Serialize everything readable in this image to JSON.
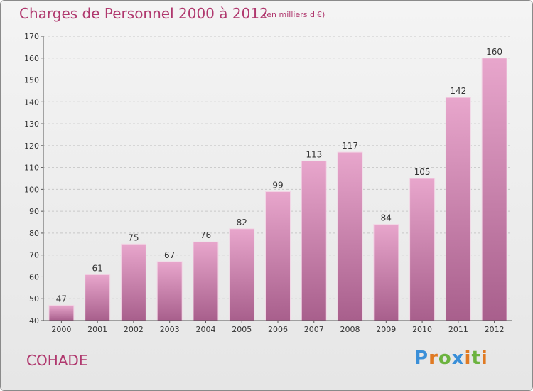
{
  "header": {
    "title": "Charges de Personnel 2000 à 2012",
    "unit": "(en milliers d'€)"
  },
  "footer": {
    "commune": "COHADE",
    "logo": [
      "P",
      "r",
      "o",
      "x",
      "i",
      "t",
      "i"
    ]
  },
  "colors": {
    "accent": "#b0386e",
    "bar_top": "#e8a6cc",
    "bar_bottom": "#a85f8c"
  },
  "chart_data": {
    "type": "bar",
    "categories": [
      "2000",
      "2001",
      "2002",
      "2003",
      "2004",
      "2005",
      "2006",
      "2007",
      "2008",
      "2009",
      "2010",
      "2011",
      "2012"
    ],
    "values": [
      47,
      61,
      75,
      67,
      76,
      82,
      99,
      113,
      117,
      84,
      105,
      142,
      160
    ],
    "ylim": [
      40,
      170
    ],
    "yticks": [
      40,
      50,
      60,
      70,
      80,
      90,
      100,
      110,
      120,
      130,
      140,
      150,
      160,
      170
    ],
    "grid": true,
    "data_labels": true
  }
}
